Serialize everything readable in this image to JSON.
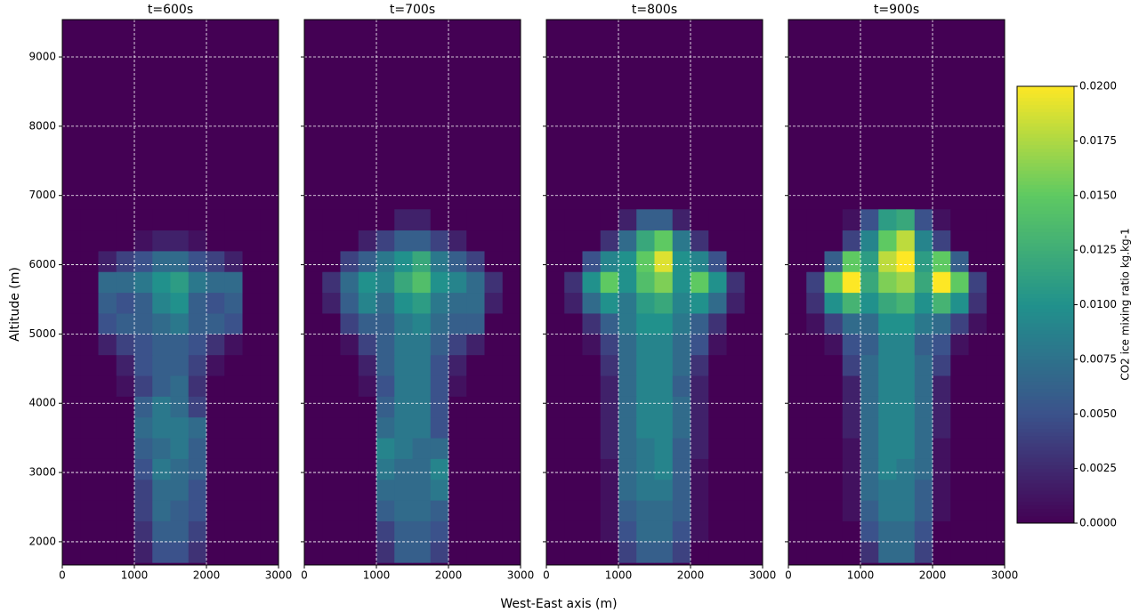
{
  "chart_data": {
    "type": "heatmap",
    "xlabel": "West-East axis (m)",
    "ylabel": "Altitude (m)",
    "colorbar_label": "CO2 ice mixing ratio kg.kg-1",
    "xlim": [
      0,
      3000
    ],
    "ylim": [
      1665,
      9540
    ],
    "xticks": [
      0,
      1000,
      2000,
      3000
    ],
    "yticks": [
      2000,
      3000,
      4000,
      5000,
      6000,
      7000,
      8000,
      9000
    ],
    "grid": true,
    "clim": [
      0,
      0.02
    ],
    "cticks": [
      {
        "value": 0,
        "label": "0.0000"
      },
      {
        "value": 0.0025,
        "label": "0.0025"
      },
      {
        "value": 0.005,
        "label": "0.0050"
      },
      {
        "value": 0.0075,
        "label": "0.0075"
      },
      {
        "value": 0.01,
        "label": "0.0100"
      },
      {
        "value": 0.0125,
        "label": "0.0125"
      },
      {
        "value": 0.015,
        "label": "0.0150"
      },
      {
        "value": 0.0175,
        "label": "0.0175"
      },
      {
        "value": 0.02,
        "label": "0.0200"
      }
    ],
    "colormap": [
      "#440154",
      "#3b528b",
      "#21918c",
      "#5ec962",
      "#fde725"
    ],
    "x_edges": [
      0,
      250,
      500,
      750,
      1000,
      1250,
      1500,
      1750,
      2000,
      2250,
      2500,
      2750,
      3000
    ],
    "y_edges": [
      1700,
      2000,
      2300,
      2600,
      2900,
      3200,
      3500,
      3800,
      4100,
      4400,
      4700,
      5000,
      5300,
      5600,
      5900,
      6200,
      6500,
      6800
    ],
    "panels": [
      {
        "title": "t=600s",
        "values": [
          [
            0,
            0,
            0,
            0,
            0.002,
            0.005,
            0.005,
            0.003,
            0,
            0,
            0,
            0
          ],
          [
            0,
            0,
            0,
            0,
            0.003,
            0.006,
            0.006,
            0.004,
            0,
            0,
            0,
            0
          ],
          [
            0,
            0,
            0,
            0,
            0.004,
            0.007,
            0.006,
            0.005,
            0,
            0,
            0,
            0
          ],
          [
            0,
            0,
            0,
            0,
            0.004,
            0.007,
            0.007,
            0.005,
            0,
            0,
            0,
            0
          ],
          [
            0,
            0,
            0,
            0,
            0.005,
            0.008,
            0.007,
            0.006,
            0,
            0,
            0,
            0
          ],
          [
            0,
            0,
            0,
            0,
            0.006,
            0.007,
            0.008,
            0.006,
            0,
            0,
            0,
            0
          ],
          [
            0,
            0,
            0,
            0,
            0.007,
            0.008,
            0.008,
            0.007,
            0,
            0,
            0,
            0
          ],
          [
            0,
            0,
            0,
            0,
            0.006,
            0.008,
            0.007,
            0.004,
            0,
            0,
            0,
            0
          ],
          [
            0,
            0,
            0,
            0.001,
            0.004,
            0.006,
            0.007,
            0.003,
            0,
            0,
            0,
            0
          ],
          [
            0,
            0,
            0,
            0.002,
            0.005,
            0.006,
            0.006,
            0.004,
            0.001,
            0,
            0,
            0
          ],
          [
            0,
            0,
            0.002,
            0.004,
            0.005,
            0.006,
            0.006,
            0.005,
            0.003,
            0.001,
            0,
            0
          ],
          [
            0,
            0,
            0.005,
            0.006,
            0.006,
            0.007,
            0.008,
            0.006,
            0.006,
            0.005,
            0,
            0
          ],
          [
            0,
            0,
            0.006,
            0.005,
            0.006,
            0.009,
            0.01,
            0.006,
            0.005,
            0.006,
            0,
            0
          ],
          [
            0,
            0,
            0.007,
            0.007,
            0.008,
            0.01,
            0.011,
            0.008,
            0.007,
            0.007,
            0,
            0
          ],
          [
            0,
            0,
            0.002,
            0.004,
            0.005,
            0.007,
            0.007,
            0.005,
            0.004,
            0.002,
            0,
            0
          ],
          [
            0,
            0,
            0,
            0,
            0.001,
            0.002,
            0.002,
            0.001,
            0,
            0,
            0,
            0
          ],
          [
            0,
            0,
            0,
            0,
            0,
            0,
            0,
            0,
            0,
            0,
            0,
            0
          ]
        ]
      },
      {
        "title": "t=700s",
        "values": [
          [
            0,
            0,
            0,
            0,
            0.003,
            0.006,
            0.006,
            0.004,
            0,
            0,
            0,
            0
          ],
          [
            0,
            0,
            0,
            0,
            0.004,
            0.006,
            0.006,
            0.005,
            0,
            0,
            0,
            0
          ],
          [
            0,
            0,
            0,
            0,
            0.006,
            0.007,
            0.007,
            0.006,
            0,
            0,
            0,
            0
          ],
          [
            0,
            0,
            0,
            0,
            0.007,
            0.007,
            0.007,
            0.008,
            0,
            0,
            0,
            0
          ],
          [
            0,
            0,
            0,
            0,
            0.008,
            0.007,
            0.007,
            0.009,
            0,
            0,
            0,
            0
          ],
          [
            0,
            0,
            0,
            0,
            0.009,
            0.008,
            0.007,
            0.007,
            0,
            0,
            0,
            0
          ],
          [
            0,
            0,
            0,
            0,
            0.007,
            0.008,
            0.008,
            0.005,
            0,
            0,
            0,
            0
          ],
          [
            0,
            0,
            0,
            0,
            0.006,
            0.008,
            0.008,
            0.005,
            0,
            0,
            0,
            0
          ],
          [
            0,
            0,
            0,
            0.001,
            0.005,
            0.008,
            0.008,
            0.005,
            0.001,
            0,
            0,
            0
          ],
          [
            0,
            0,
            0,
            0.002,
            0.006,
            0.008,
            0.008,
            0.005,
            0.002,
            0,
            0,
            0
          ],
          [
            0,
            0,
            0.001,
            0.004,
            0.006,
            0.008,
            0.008,
            0.006,
            0.004,
            0.002,
            0,
            0
          ],
          [
            0,
            0,
            0.004,
            0.006,
            0.006,
            0.008,
            0.009,
            0.007,
            0.006,
            0.006,
            0,
            0
          ],
          [
            0,
            0.002,
            0.006,
            0.009,
            0.007,
            0.01,
            0.011,
            0.008,
            0.007,
            0.007,
            0.002,
            0
          ],
          [
            0,
            0.003,
            0.007,
            0.01,
            0.009,
            0.012,
            0.014,
            0.01,
            0.009,
            0.007,
            0.003,
            0
          ],
          [
            0,
            0,
            0.004,
            0.006,
            0.008,
            0.01,
            0.012,
            0.008,
            0.006,
            0.004,
            0,
            0
          ],
          [
            0,
            0,
            0,
            0.002,
            0.004,
            0.006,
            0.006,
            0.004,
            0.002,
            0,
            0,
            0
          ],
          [
            0,
            0,
            0,
            0,
            0,
            0.002,
            0.002,
            0,
            0,
            0,
            0,
            0
          ]
        ]
      },
      {
        "title": "t=800s",
        "values": [
          [
            0,
            0,
            0,
            0,
            0.004,
            0.006,
            0.006,
            0.004,
            0,
            0,
            0,
            0
          ],
          [
            0,
            0,
            0,
            0.001,
            0.005,
            0.007,
            0.007,
            0.005,
            0.001,
            0,
            0,
            0
          ],
          [
            0,
            0,
            0,
            0.001,
            0.006,
            0.007,
            0.007,
            0.006,
            0.001,
            0,
            0,
            0
          ],
          [
            0,
            0,
            0,
            0.001,
            0.007,
            0.008,
            0.008,
            0.006,
            0.001,
            0,
            0,
            0
          ],
          [
            0,
            0,
            0,
            0.001,
            0.007,
            0.008,
            0.009,
            0.006,
            0.001,
            0,
            0,
            0
          ],
          [
            0,
            0,
            0,
            0.002,
            0.007,
            0.008,
            0.009,
            0.006,
            0.002,
            0,
            0,
            0
          ],
          [
            0,
            0,
            0,
            0.002,
            0.007,
            0.009,
            0.009,
            0.007,
            0.002,
            0,
            0,
            0
          ],
          [
            0,
            0,
            0,
            0.002,
            0.007,
            0.009,
            0.009,
            0.007,
            0.002,
            0,
            0,
            0
          ],
          [
            0,
            0,
            0,
            0.002,
            0.007,
            0.009,
            0.009,
            0.006,
            0.002,
            0,
            0,
            0
          ],
          [
            0,
            0,
            0,
            0.003,
            0.007,
            0.009,
            0.009,
            0.007,
            0.003,
            0,
            0,
            0
          ],
          [
            0,
            0,
            0.001,
            0.004,
            0.007,
            0.009,
            0.009,
            0.007,
            0.005,
            0.001,
            0,
            0
          ],
          [
            0,
            0,
            0.003,
            0.006,
            0.008,
            0.01,
            0.01,
            0.008,
            0.006,
            0.003,
            0,
            0
          ],
          [
            0,
            0.002,
            0.007,
            0.01,
            0.008,
            0.011,
            0.012,
            0.009,
            0.01,
            0.007,
            0.002,
            0
          ],
          [
            0,
            0.003,
            0.01,
            0.015,
            0.01,
            0.014,
            0.016,
            0.01,
            0.015,
            0.01,
            0.003,
            0
          ],
          [
            0,
            0,
            0.005,
            0.009,
            0.01,
            0.015,
            0.019,
            0.01,
            0.009,
            0.005,
            0,
            0
          ],
          [
            0,
            0,
            0,
            0.003,
            0.007,
            0.012,
            0.015,
            0.008,
            0.003,
            0,
            0,
            0
          ],
          [
            0,
            0,
            0,
            0,
            0.002,
            0.006,
            0.006,
            0.002,
            0,
            0,
            0,
            0
          ]
        ]
      },
      {
        "title": "t=900s",
        "values": [
          [
            0,
            0,
            0,
            0,
            0.003,
            0.007,
            0.007,
            0.004,
            0,
            0,
            0,
            0
          ],
          [
            0,
            0,
            0,
            0,
            0.005,
            0.007,
            0.007,
            0.005,
            0,
            0,
            0,
            0
          ],
          [
            0,
            0,
            0,
            0.001,
            0.006,
            0.008,
            0.008,
            0.006,
            0.001,
            0,
            0,
            0
          ],
          [
            0,
            0,
            0,
            0.001,
            0.007,
            0.008,
            0.008,
            0.006,
            0.001,
            0,
            0,
            0
          ],
          [
            0,
            0,
            0,
            0.001,
            0.007,
            0.009,
            0.008,
            0.007,
            0.001,
            0,
            0,
            0
          ],
          [
            0,
            0,
            0,
            0.001,
            0.007,
            0.009,
            0.009,
            0.007,
            0.001,
            0,
            0,
            0
          ],
          [
            0,
            0,
            0,
            0.002,
            0.007,
            0.009,
            0.009,
            0.007,
            0.002,
            0,
            0,
            0
          ],
          [
            0,
            0,
            0,
            0.002,
            0.007,
            0.009,
            0.009,
            0.007,
            0.002,
            0,
            0,
            0
          ],
          [
            0,
            0,
            0,
            0.002,
            0.007,
            0.009,
            0.009,
            0.007,
            0.002,
            0,
            0,
            0
          ],
          [
            0,
            0,
            0,
            0.004,
            0.007,
            0.009,
            0.009,
            0.007,
            0.004,
            0,
            0,
            0
          ],
          [
            0,
            0,
            0.001,
            0.005,
            0.006,
            0.009,
            0.009,
            0.006,
            0.005,
            0.001,
            0,
            0
          ],
          [
            0,
            0.001,
            0.004,
            0.007,
            0.007,
            0.01,
            0.01,
            0.008,
            0.007,
            0.004,
            0.001,
            0
          ],
          [
            0,
            0.003,
            0.01,
            0.013,
            0.01,
            0.012,
            0.013,
            0.01,
            0.013,
            0.01,
            0.003,
            0
          ],
          [
            0,
            0.004,
            0.015,
            0.02,
            0.012,
            0.016,
            0.017,
            0.012,
            0.02,
            0.015,
            0.004,
            0
          ],
          [
            0,
            0,
            0.006,
            0.015,
            0.011,
            0.018,
            0.02,
            0.011,
            0.015,
            0.006,
            0,
            0
          ],
          [
            0,
            0,
            0,
            0.004,
            0.009,
            0.015,
            0.018,
            0.009,
            0.004,
            0,
            0,
            0
          ],
          [
            0,
            0,
            0,
            0.001,
            0.005,
            0.011,
            0.012,
            0.005,
            0.001,
            0,
            0,
            0
          ]
        ]
      }
    ]
  }
}
